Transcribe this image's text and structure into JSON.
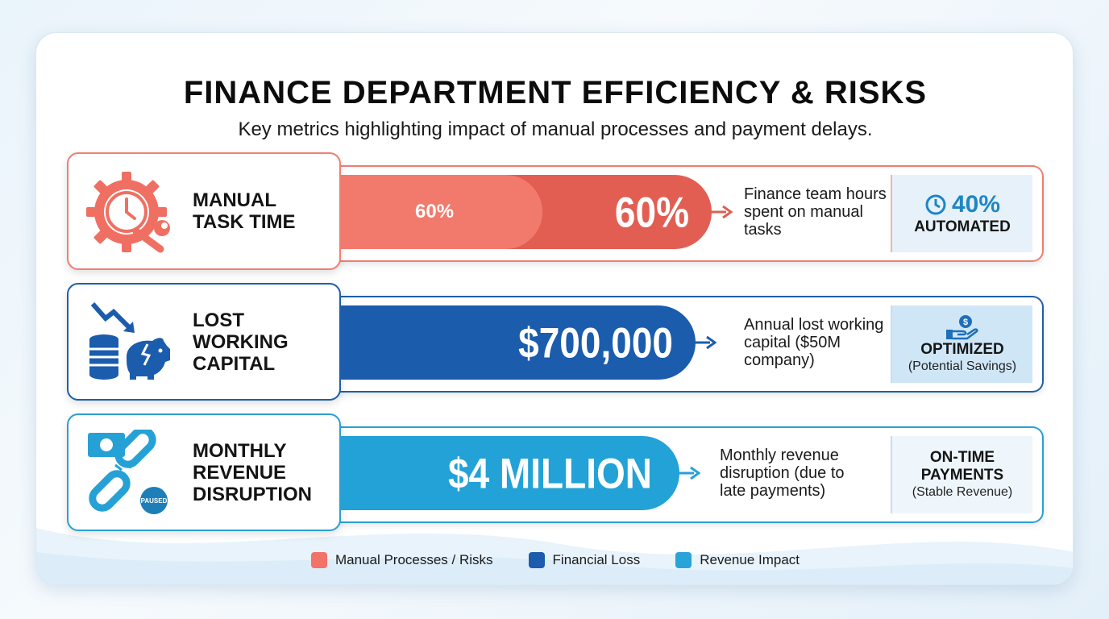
{
  "header": {
    "title": "FINANCE DEPARTMENT EFFICIENCY & RISKS",
    "subtitle": "Key metrics highlighting impact of manual processes and payment delays."
  },
  "rows": [
    {
      "label_lines": [
        "MANUAL",
        "TASK TIME"
      ],
      "bar_small": "60%",
      "bar_value": "60%",
      "description": "Finance team hours spent on manual tasks",
      "solution_value": "40%",
      "solution_label": "AUTOMATED",
      "icon": "gear-clock-wrench-icon",
      "color": "#e25e52"
    },
    {
      "label_lines": [
        "LOST",
        "WORKING",
        "CAPITAL"
      ],
      "bar_value": "$700,000",
      "description": "Annual lost working capital ($50M company)",
      "solution_label": "OPTIMIZED",
      "solution_note": "(Potential Savings)",
      "icon": "coins-piggy-bank-icon",
      "color": "#1b5cad"
    },
    {
      "label_lines": [
        "MONTHLY",
        "REVENUE",
        "DISRUPTION"
      ],
      "bar_value": "$4 MILLION",
      "description": "Monthly revenue disruption (due to late payments)",
      "solution_label_lines": [
        "ON-TIME",
        "PAYMENTS"
      ],
      "solution_note": "(Stable Revenue)",
      "icon": "broken-chain-money-icon",
      "icon_badge": "PAUSED",
      "color": "#23a2d7"
    }
  ],
  "legend": [
    {
      "label": "Manual Processes / Risks",
      "color": "#f07268"
    },
    {
      "label": "Financial Loss",
      "color": "#1b5cad"
    },
    {
      "label": "Revenue Impact",
      "color": "#2aa3d8"
    }
  ]
}
